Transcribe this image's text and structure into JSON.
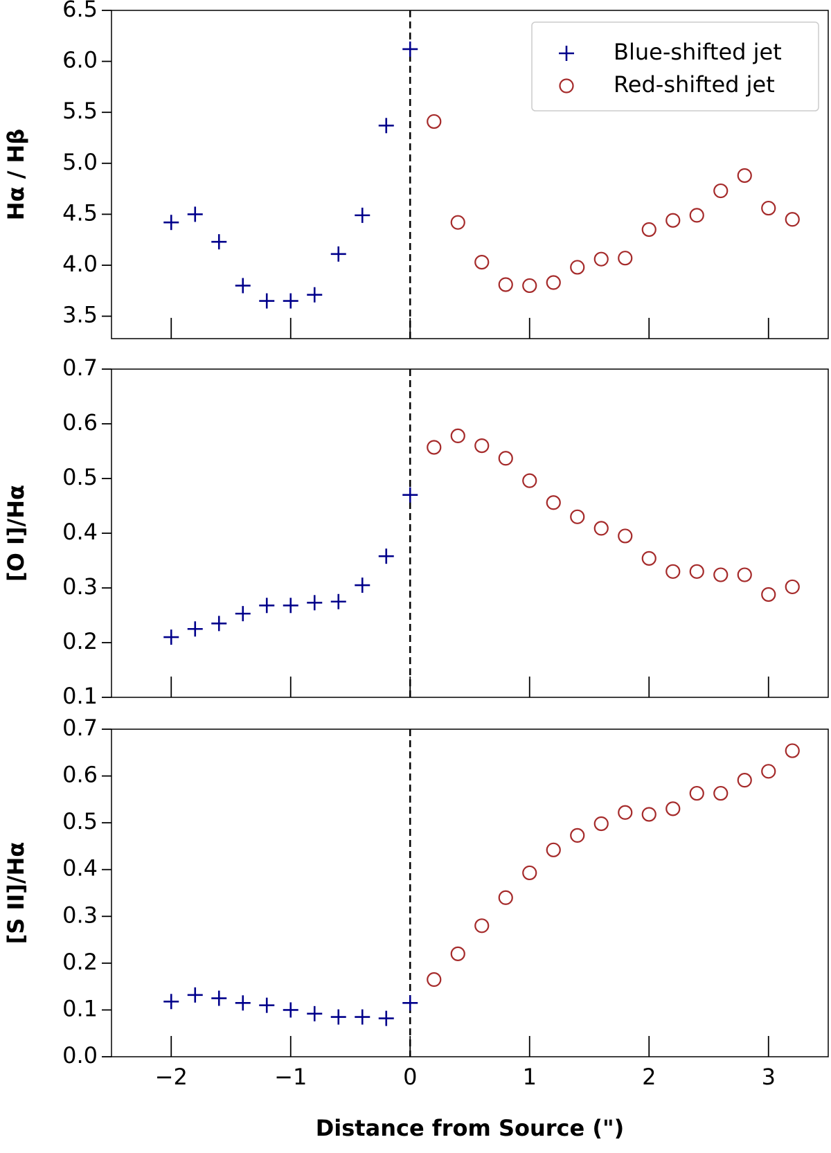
{
  "chart_data": [
    {
      "type": "scatter",
      "ylabel": "Hα / Hβ",
      "xlim": [
        -2.5,
        3.5
      ],
      "ylim": [
        3.28,
        6.5
      ],
      "yticks": [
        3.5,
        {
          "value": 4,
          "label": "4.0"
        },
        4.5,
        {
          "value": 5,
          "label": "5.0"
        },
        5.5,
        {
          "value": 6,
          "label": "6.0"
        },
        6.5
      ],
      "vline": 0,
      "legend": "upper right",
      "series": [
        {
          "name": "Blue-shifted jet",
          "color": "#00008b",
          "marker": "plus",
          "x": [
            -2,
            -1.8,
            -1.6,
            -1.4,
            -1.2,
            -1,
            -0.8,
            -0.6,
            -0.4,
            -0.2,
            0
          ],
          "values": [
            4.42,
            4.5,
            4.23,
            3.8,
            3.65,
            3.65,
            3.71,
            4.11,
            4.49,
            5.37,
            6.12
          ]
        },
        {
          "name": "Red-shifted jet",
          "color": "#a52a2a",
          "marker": "circle",
          "x": [
            0.2,
            0.4,
            0.6,
            0.8,
            1,
            1.2,
            1.4,
            1.6,
            1.8,
            2,
            2.2,
            2.4,
            2.6,
            2.8,
            3,
            3.2
          ],
          "values": [
            5.41,
            4.42,
            4.03,
            3.81,
            3.8,
            3.83,
            3.98,
            4.06,
            4.07,
            4.35,
            4.44,
            4.49,
            4.73,
            4.88,
            4.56,
            4.45
          ]
        }
      ]
    },
    {
      "type": "scatter",
      "ylabel": "[O I]/Hα",
      "xlim": [
        -2.5,
        3.5
      ],
      "ylim": [
        0.1,
        0.7
      ],
      "yticks": [
        0.1,
        0.2,
        0.3,
        0.4,
        0.5,
        0.6,
        0.7
      ],
      "vline": 0,
      "series": [
        {
          "color": "#00008b",
          "marker": "plus",
          "x": [
            -2,
            -1.8,
            -1.6,
            -1.4,
            -1.2,
            -1,
            -0.8,
            -0.6,
            -0.4,
            -0.2,
            0
          ],
          "values": [
            0.21,
            0.225,
            0.235,
            0.253,
            0.268,
            0.268,
            0.273,
            0.275,
            0.305,
            0.358,
            0.47
          ]
        },
        {
          "color": "#a52a2a",
          "marker": "circle",
          "x": [
            0.2,
            0.4,
            0.6,
            0.8,
            1,
            1.2,
            1.4,
            1.6,
            1.8,
            2,
            2.2,
            2.4,
            2.6,
            2.8,
            3,
            3.2
          ],
          "values": [
            0.557,
            0.578,
            0.56,
            0.537,
            0.496,
            0.456,
            0.43,
            0.409,
            0.395,
            0.354,
            0.33,
            0.33,
            0.324,
            0.324,
            0.288,
            0.302
          ]
        }
      ]
    },
    {
      "type": "scatter",
      "ylabel": "[S II]/Hα",
      "xlabel": "Distance from Source (\")",
      "xlim": [
        -2.5,
        3.5
      ],
      "ylim": [
        0,
        0.7
      ],
      "xticks": [
        {
          "value": -2,
          "label": "−2"
        },
        {
          "value": -1,
          "label": "−1"
        },
        0,
        1,
        2,
        3
      ],
      "yticks": [
        {
          "value": 0,
          "label": "0.0"
        },
        0.1,
        0.2,
        0.3,
        0.4,
        0.5,
        0.6,
        0.7
      ],
      "vline": 0,
      "series": [
        {
          "color": "#00008b",
          "marker": "plus",
          "x": [
            -2,
            -1.8,
            -1.6,
            -1.4,
            -1.2,
            -1,
            -0.8,
            -0.6,
            -0.4,
            -0.2,
            0
          ],
          "values": [
            0.118,
            0.132,
            0.125,
            0.115,
            0.11,
            0.1,
            0.092,
            0.085,
            0.085,
            0.082,
            0.115
          ]
        },
        {
          "color": "#a52a2a",
          "marker": "circle",
          "x": [
            0.2,
            0.4,
            0.6,
            0.8,
            1,
            1.2,
            1.4,
            1.6,
            1.8,
            2,
            2.2,
            2.4,
            2.6,
            2.8,
            3,
            3.2
          ],
          "values": [
            0.165,
            0.22,
            0.28,
            0.34,
            0.393,
            0.442,
            0.473,
            0.498,
            0.522,
            0.518,
            0.53,
            0.563,
            0.563,
            0.591,
            0.61,
            0.654
          ]
        }
      ]
    }
  ]
}
